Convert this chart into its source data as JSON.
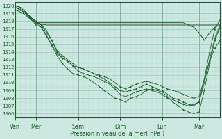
{
  "bg_color": "#cce8e0",
  "grid_minor_color": "#b8d8d0",
  "grid_major_color": "#90c0b0",
  "line_color": "#1a5c2a",
  "ylabel_text": "Pression niveau de la mer( hPa )",
  "xtick_labels": [
    "Ven",
    "Mer",
    "Sam",
    "Dim",
    "Lun",
    "Mar"
  ],
  "xtick_positions": [
    0,
    24,
    72,
    120,
    168,
    210
  ],
  "ylim": [
    1005.5,
    1020.5
  ],
  "yticks": [
    1006,
    1007,
    1008,
    1009,
    1010,
    1011,
    1012,
    1013,
    1014,
    1015,
    1016,
    1017,
    1018,
    1019,
    1020
  ],
  "total_hours": 234,
  "series": [
    [
      0,
      1020.0,
      6,
      1019.8,
      12,
      1019.2,
      18,
      1018.5,
      24,
      1018.0,
      30,
      1017.5,
      36,
      1016.8,
      42,
      1015.5,
      48,
      1014.0,
      54,
      1013.2,
      60,
      1012.8,
      66,
      1012.2,
      72,
      1011.5,
      78,
      1011.2,
      84,
      1011.0,
      90,
      1010.8,
      96,
      1010.5,
      102,
      1010.2,
      108,
      1009.8,
      114,
      1009.2,
      120,
      1008.5,
      126,
      1008.2,
      132,
      1008.5,
      138,
      1008.8,
      144,
      1009.0,
      150,
      1009.2,
      156,
      1009.0,
      162,
      1008.8,
      168,
      1008.5,
      174,
      1008.0,
      180,
      1007.8,
      186,
      1007.5,
      192,
      1007.2,
      198,
      1007.0,
      204,
      1007.2,
      210,
      1007.5,
      216,
      1010.5,
      222,
      1014.0,
      228,
      1017.0,
      234,
      1018.2
    ],
    [
      0,
      1019.8,
      6,
      1019.5,
      12,
      1019.0,
      18,
      1018.2,
      24,
      1017.8,
      30,
      1017.2,
      36,
      1016.2,
      42,
      1014.8,
      48,
      1013.5,
      54,
      1012.5,
      60,
      1011.8,
      66,
      1011.2,
      72,
      1011.0,
      78,
      1010.8,
      84,
      1010.5,
      90,
      1010.0,
      96,
      1009.5,
      102,
      1009.0,
      108,
      1008.5,
      114,
      1008.0,
      120,
      1007.8,
      126,
      1007.5,
      132,
      1008.0,
      138,
      1008.2,
      144,
      1008.5,
      150,
      1009.0,
      156,
      1009.2,
      162,
      1009.0,
      168,
      1008.8,
      174,
      1008.2,
      180,
      1007.5,
      186,
      1007.0,
      192,
      1006.5,
      198,
      1006.2,
      204,
      1006.0,
      210,
      1006.2,
      216,
      1009.0,
      222,
      1012.5,
      228,
      1015.5,
      234,
      1017.2
    ],
    [
      0,
      1020.0,
      6,
      1019.8,
      12,
      1019.2,
      18,
      1018.5,
      24,
      1017.8,
      30,
      1017.5,
      36,
      1016.5,
      42,
      1015.5,
      48,
      1014.2,
      54,
      1013.5,
      60,
      1013.0,
      66,
      1012.5,
      72,
      1012.0,
      78,
      1011.8,
      84,
      1011.5,
      90,
      1011.2,
      96,
      1010.8,
      102,
      1010.5,
      108,
      1010.0,
      114,
      1009.5,
      120,
      1009.0,
      126,
      1008.8,
      132,
      1009.0,
      138,
      1009.2,
      144,
      1009.5,
      150,
      1009.8,
      156,
      1009.5,
      162,
      1009.2,
      168,
      1009.0,
      174,
      1008.5,
      180,
      1008.0,
      186,
      1007.8,
      192,
      1007.5,
      198,
      1007.2,
      204,
      1007.0,
      210,
      1007.5,
      216,
      1010.0,
      222,
      1013.0,
      228,
      1015.8,
      234,
      1017.5
    ],
    [
      0,
      1019.8,
      6,
      1019.5,
      12,
      1019.0,
      18,
      1018.3,
      24,
      1017.5,
      30,
      1017.2,
      36,
      1016.0,
      42,
      1015.0,
      48,
      1013.8,
      54,
      1013.2,
      60,
      1012.8,
      66,
      1012.2,
      72,
      1012.0,
      78,
      1011.8,
      84,
      1011.5,
      90,
      1011.2,
      96,
      1011.0,
      102,
      1010.8,
      108,
      1010.5,
      114,
      1010.0,
      120,
      1009.5,
      126,
      1009.2,
      132,
      1009.5,
      138,
      1009.8,
      144,
      1010.0,
      150,
      1010.2,
      156,
      1010.0,
      162,
      1009.8,
      168,
      1009.5,
      174,
      1009.2,
      180,
      1009.0,
      186,
      1008.8,
      192,
      1008.5,
      198,
      1008.2,
      204,
      1008.0,
      210,
      1008.2,
      216,
      1010.5,
      222,
      1012.8,
      228,
      1014.5,
      234,
      1015.5
    ],
    [
      0,
      1019.5,
      6,
      1019.2,
      12,
      1018.8,
      18,
      1018.2,
      24,
      1017.8,
      30,
      1017.6,
      36,
      1017.5,
      42,
      1017.5,
      48,
      1017.5,
      54,
      1017.5,
      60,
      1017.5,
      66,
      1017.5,
      72,
      1017.5,
      78,
      1017.5,
      84,
      1017.5,
      90,
      1017.5,
      96,
      1017.5,
      102,
      1017.5,
      108,
      1017.5,
      114,
      1017.5,
      120,
      1017.5,
      126,
      1017.5,
      132,
      1017.5,
      138,
      1017.5,
      144,
      1017.5,
      150,
      1017.5,
      156,
      1017.5,
      162,
      1017.5,
      168,
      1017.5,
      174,
      1017.5,
      180,
      1017.5,
      186,
      1017.5,
      192,
      1017.5,
      198,
      1017.5,
      204,
      1017.5,
      210,
      1017.5,
      216,
      1017.5,
      222,
      1017.5,
      228,
      1017.5,
      234,
      1017.5
    ],
    [
      0,
      1019.8,
      6,
      1019.5,
      12,
      1019.0,
      18,
      1018.5,
      24,
      1017.8,
      30,
      1017.8,
      36,
      1017.8,
      42,
      1017.8,
      48,
      1017.8,
      54,
      1017.8,
      60,
      1017.8,
      66,
      1017.8,
      72,
      1017.8,
      78,
      1017.8,
      84,
      1017.8,
      90,
      1017.8,
      96,
      1017.8,
      102,
      1017.8,
      108,
      1017.8,
      114,
      1017.8,
      120,
      1017.8,
      126,
      1017.8,
      132,
      1017.8,
      138,
      1017.8,
      144,
      1017.8,
      150,
      1017.8,
      156,
      1017.8,
      162,
      1017.8,
      168,
      1017.8,
      174,
      1017.8,
      180,
      1017.8,
      186,
      1017.8,
      192,
      1017.8,
      198,
      1017.5,
      204,
      1017.2,
      210,
      1016.5,
      216,
      1015.5,
      222,
      1016.5,
      228,
      1017.2,
      234,
      1017.5
    ]
  ]
}
